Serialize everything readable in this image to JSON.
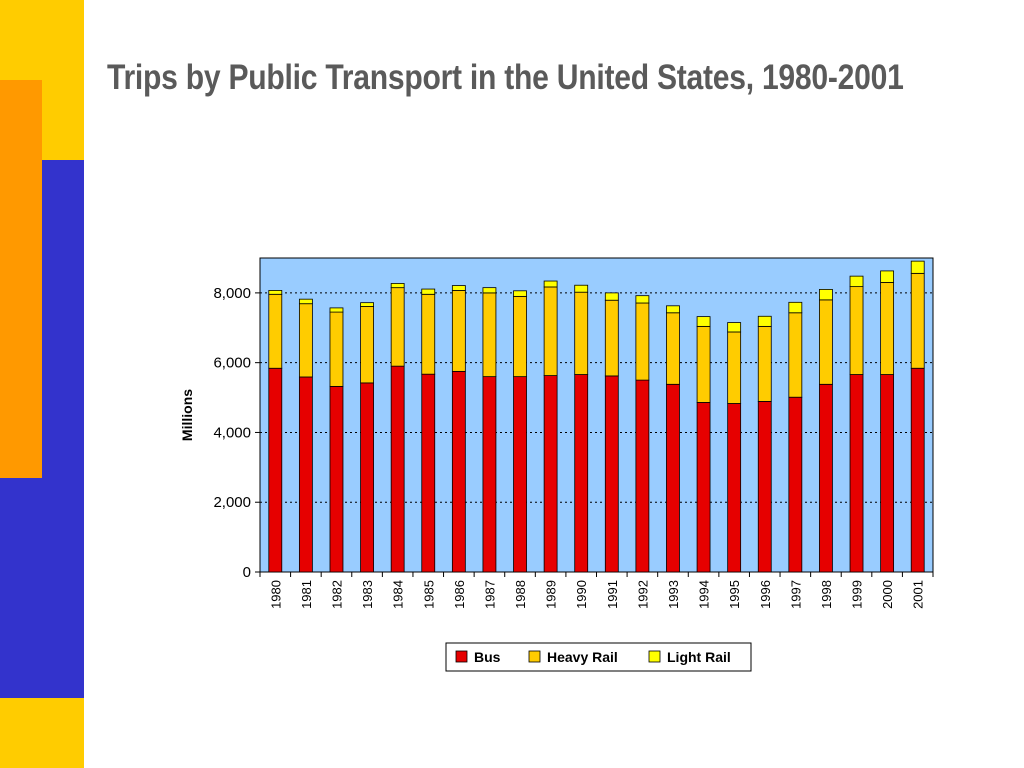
{
  "slide": {
    "title": "Trips by Public Transport in the United States, 1980-2001",
    "colors": {
      "yellow_band": "#ffcc00",
      "orange_band": "#ff9900",
      "blue_band": "#3333cc"
    }
  },
  "chart_data": {
    "type": "bar",
    "stacked": true,
    "title": "",
    "xlabel": "",
    "ylabel": "Millions",
    "ylim": [
      0,
      9000
    ],
    "yticks": [
      0,
      2000,
      4000,
      6000,
      8000
    ],
    "ytick_labels": [
      "0",
      "2,000",
      "4,000",
      "6,000",
      "8,000"
    ],
    "grid": "horizontal dotted",
    "legend_position": "bottom",
    "plot_background": "#99ccff",
    "categories": [
      "1980",
      "1981",
      "1982",
      "1983",
      "1984",
      "1985",
      "1986",
      "1987",
      "1988",
      "1989",
      "1990",
      "1991",
      "1992",
      "1993",
      "1994",
      "1995",
      "1996",
      "1997",
      "1998",
      "1999",
      "2000",
      "2001"
    ],
    "series": [
      {
        "name": "Bus",
        "color": "#e60000",
        "values": [
          5840,
          5590,
          5320,
          5420,
          5900,
          5670,
          5750,
          5600,
          5600,
          5630,
          5660,
          5620,
          5500,
          5380,
          4860,
          4830,
          4890,
          5010,
          5380,
          5660,
          5660,
          5840
        ]
      },
      {
        "name": "Heavy Rail",
        "color": "#ffcc00",
        "values": [
          2120,
          2100,
          2130,
          2190,
          2250,
          2290,
          2320,
          2400,
          2300,
          2540,
          2360,
          2170,
          2210,
          2050,
          2180,
          2050,
          2150,
          2420,
          2420,
          2520,
          2640,
          2720
        ]
      },
      {
        "name": "Light Rail",
        "color": "#ffff00",
        "values": [
          110,
          130,
          120,
          110,
          120,
          150,
          140,
          150,
          160,
          170,
          200,
          210,
          210,
          200,
          280,
          270,
          290,
          300,
          300,
          300,
          330,
          350
        ]
      }
    ]
  }
}
